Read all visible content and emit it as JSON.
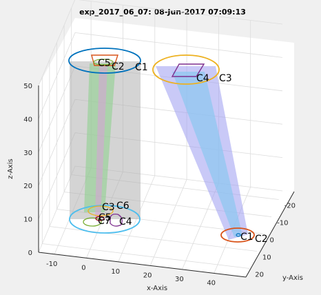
{
  "chart_data": {
    "type": "3d-cone-plot",
    "title": "exp_2017_06_07: 08-Jun-2017 07:09:13",
    "xlabel": "x-Axis",
    "ylabel": "y-Axis",
    "zlabel": "z-Axis",
    "xlim": [
      -15,
      50
    ],
    "ylim": [
      -25,
      25
    ],
    "zlim": [
      0,
      50
    ],
    "x_ticks": [
      "-10",
      "0",
      "10",
      "20",
      "30",
      "40"
    ],
    "y_ticks": [
      "-20",
      "-10",
      "0",
      "10",
      "20"
    ],
    "z_ticks": [
      "0",
      "10",
      "20",
      "30",
      "40",
      "50"
    ],
    "grid": true,
    "groups": [
      {
        "top": {
          "ellipse_color": "#0072bd",
          "labels": [
            "C5",
            "C2",
            "C1"
          ],
          "shape_colors": [
            "#d95319",
            "#77ac30"
          ]
        },
        "bottom": {
          "ellipse_color": "#4dbeee",
          "labels": [
            "C3",
            "C6",
            "C7",
            "C5",
            "C4"
          ],
          "shape_colors": [
            "#edb120",
            "#77ac30",
            "#a2142f",
            "#7e2f8e"
          ]
        },
        "cone_colors": [
          "#b0b0b0",
          "#8fd18f",
          "#d9a0d9"
        ]
      },
      {
        "top": {
          "ellipse_color": "#edb120",
          "labels": [
            "C4",
            "C3"
          ],
          "shape_colors": [
            "#7e2f8e"
          ]
        },
        "bottom": {
          "ellipse_color": "#d95319",
          "labels": [
            "C1",
            "C2"
          ],
          "shape_colors": [
            "#0072bd"
          ]
        },
        "cone_colors": [
          "#9c9cf0",
          "#87c8f0"
        ]
      }
    ]
  }
}
